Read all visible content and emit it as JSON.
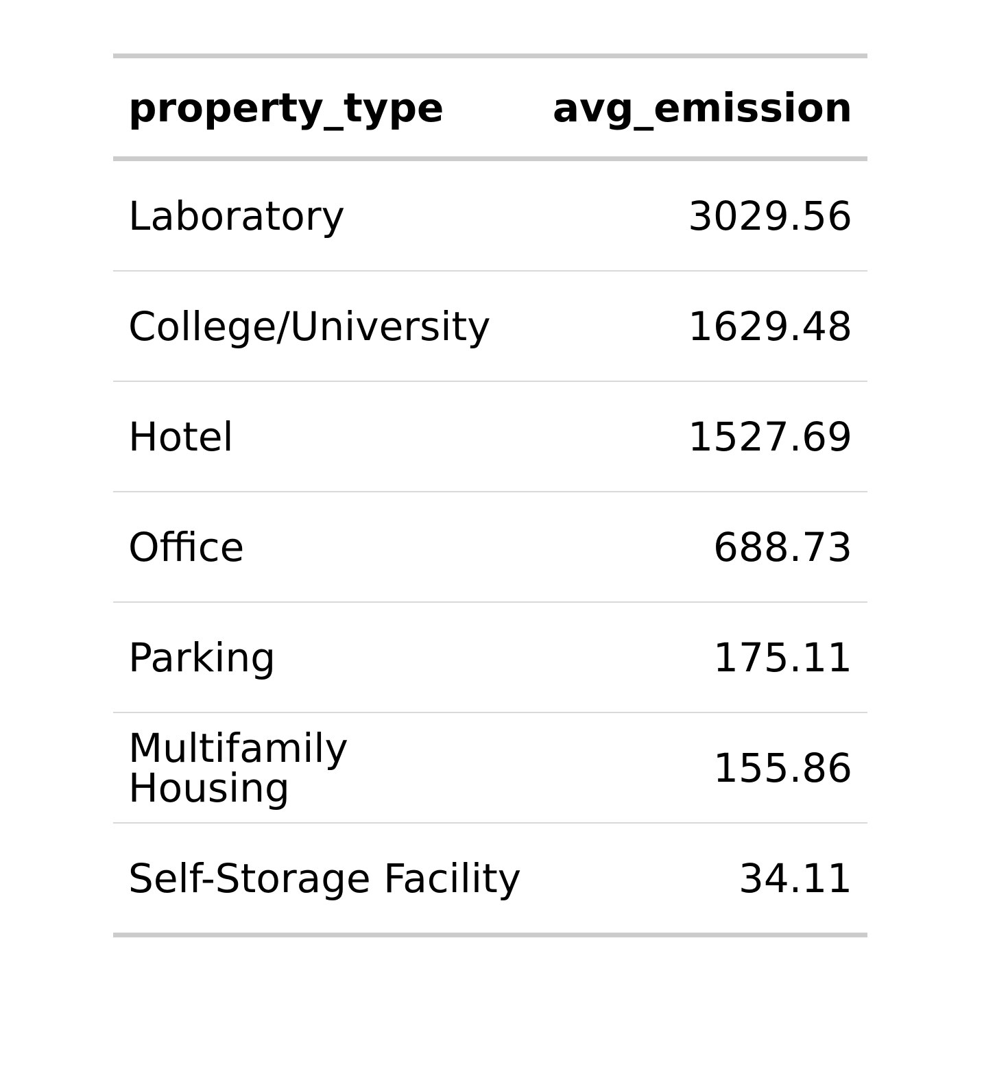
{
  "chart_data": {
    "type": "table",
    "columns": [
      "property_type",
      "avg_emission"
    ],
    "rows": [
      [
        "Laboratory",
        "3029.56"
      ],
      [
        "College/University",
        "1629.48"
      ],
      [
        "Hotel",
        "1527.69"
      ],
      [
        "Office",
        "688.73"
      ],
      [
        "Parking",
        "175.11"
      ],
      [
        "Multifamily Housing",
        "155.86"
      ],
      [
        "Self-Storage Facility",
        "34.11"
      ]
    ]
  }
}
